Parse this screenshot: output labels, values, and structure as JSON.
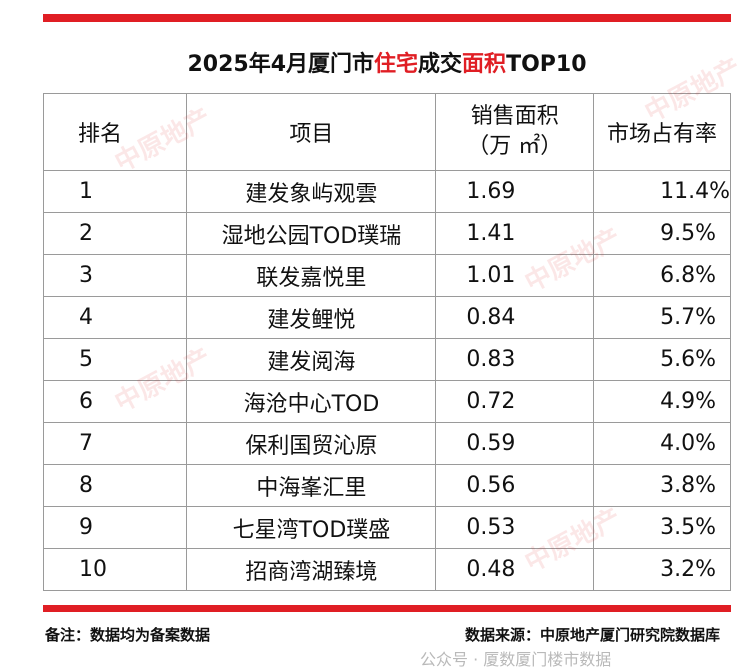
{
  "colors": {
    "accent": "#e01e24",
    "text": "#111111",
    "grid": "#9a9a9a"
  },
  "title": {
    "pre": "2025年4月厦门市",
    "hl1": "住宅",
    "mid": "成交",
    "hl2": "面积",
    "post": "TOP10"
  },
  "table": {
    "headers": {
      "rank": "排名",
      "project": "项目",
      "area_line1": "销售面积",
      "area_line2": "（万 ㎡）",
      "share": "市场占有率"
    },
    "rows": [
      {
        "rank": "1",
        "project": "建发象屿观雲",
        "area": "1.69",
        "share": "11.4%"
      },
      {
        "rank": "2",
        "project": "湿地公园TOD璞瑞",
        "area": "1.41",
        "share": "9.5%"
      },
      {
        "rank": "3",
        "project": "联发嘉悦里",
        "area": "1.01",
        "share": "6.8%"
      },
      {
        "rank": "4",
        "project": "建发鲤悦",
        "area": "0.84",
        "share": "5.7%"
      },
      {
        "rank": "5",
        "project": "建发阅海",
        "area": "0.83",
        "share": "5.6%"
      },
      {
        "rank": "6",
        "project": "海沧中心TOD",
        "area": "0.72",
        "share": "4.9%"
      },
      {
        "rank": "7",
        "project": "保利国贸沁原",
        "area": "0.59",
        "share": "4.0%"
      },
      {
        "rank": "8",
        "project": "中海峯汇里",
        "area": "0.56",
        "share": "3.8%"
      },
      {
        "rank": "9",
        "project": "七星湾TOD璞盛",
        "area": "0.53",
        "share": "3.5%"
      },
      {
        "rank": "10",
        "project": "招商湾湖臻境",
        "area": "0.48",
        "share": "3.2%"
      }
    ]
  },
  "footer": {
    "note": "备注：数据均为备案数据",
    "source": "数据来源：中原地产厦门研究院数据库",
    "account_watermark": "公众号 · 厦数厦门楼市数据"
  },
  "watermark_text": "中原地产"
}
